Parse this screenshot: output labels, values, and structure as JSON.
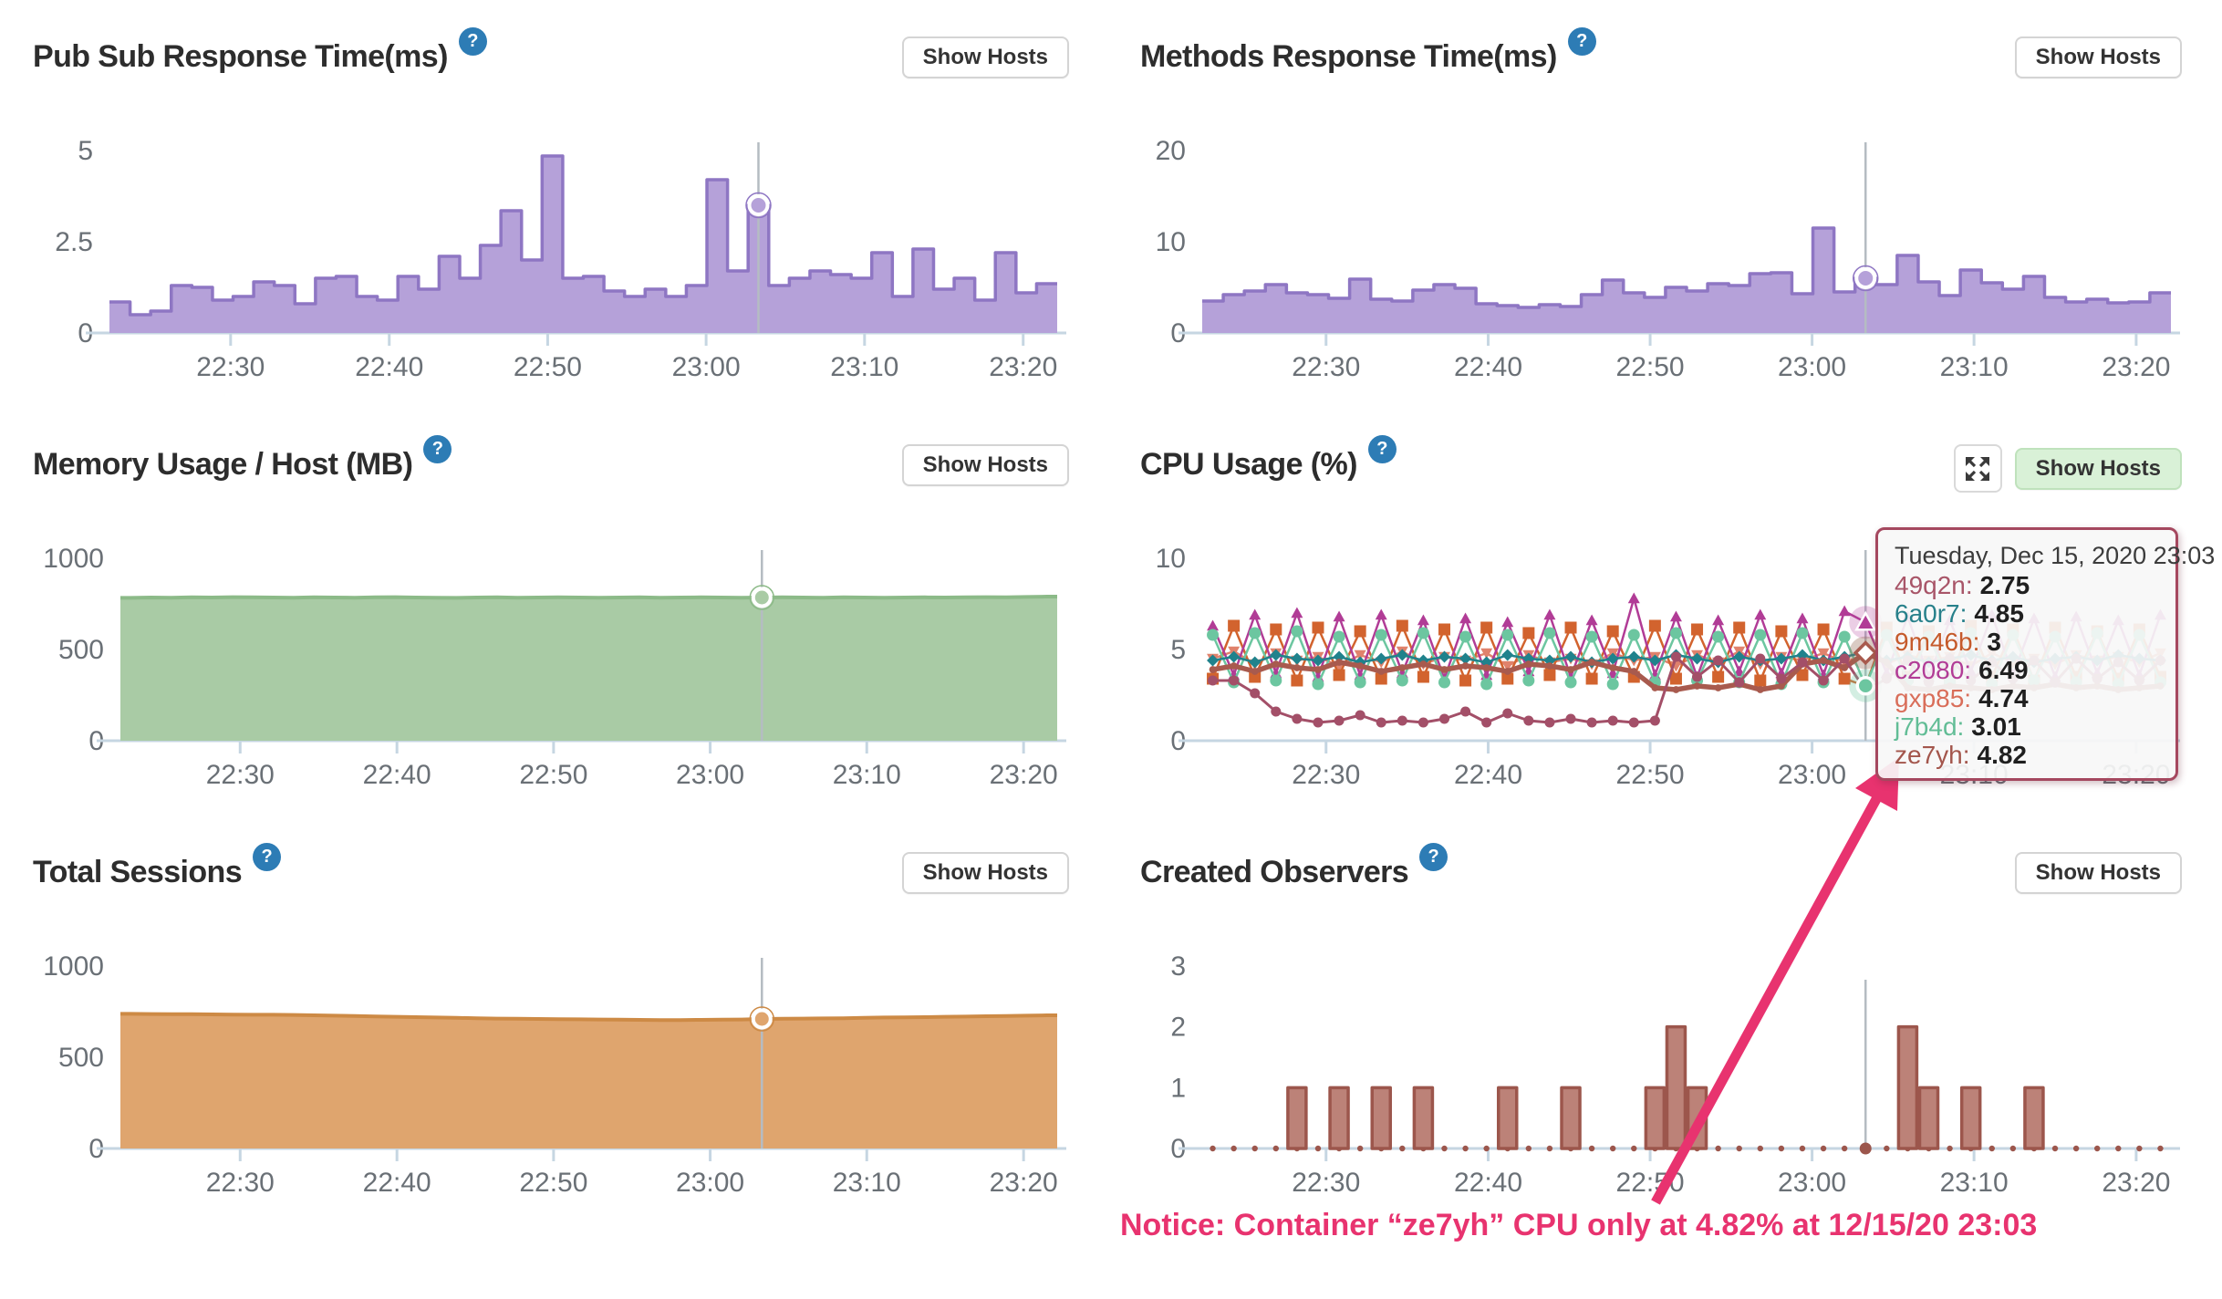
{
  "buttons": {
    "show_hosts": "Show Hosts"
  },
  "colors": {
    "purple_fill": "#b5a1d9",
    "purple_stroke": "#8e76c3",
    "green_fill": "#a9cba5",
    "green_stroke": "#8cba88",
    "orange_fill": "#dfa56e",
    "orange_stroke": "#cd8a45",
    "maroon_fill": "#bc8278",
    "maroon_stroke": "#9c564c",
    "axis": "#c6d6e2",
    "crosshair": "#b5bcc2",
    "help_icon": "#2d7cb5",
    "notice": "#e8336f",
    "tooltip_border": "#a5485f"
  },
  "panels": {
    "pubsub": {
      "title": "Pub Sub Response Time(ms)"
    },
    "methods": {
      "title": "Methods Response Time(ms)"
    },
    "memory": {
      "title": "Memory Usage / Host (MB)"
    },
    "cpu": {
      "title": "CPU Usage (%)"
    },
    "sessions": {
      "title": "Total Sessions"
    },
    "observers": {
      "title": "Created Observers"
    }
  },
  "tooltip": {
    "header": "Tuesday, Dec 15, 2020 23:03",
    "rows": [
      {
        "label": "49q2n",
        "value": "2.75",
        "color": "#a85568"
      },
      {
        "label": "6a0r7",
        "value": "4.85",
        "color": "#27808a"
      },
      {
        "label": "9m46b",
        "value": "3",
        "color": "#c55a2b"
      },
      {
        "label": "c2080",
        "value": "6.49",
        "color": "#b13c96"
      },
      {
        "label": "gxp85",
        "value": "4.74",
        "color": "#d96e5a"
      },
      {
        "label": "j7b4d",
        "value": "3.01",
        "color": "#62bd96"
      },
      {
        "label": "ze7yh",
        "value": "4.82",
        "color": "#a3564c"
      }
    ]
  },
  "notice": {
    "text": "Notice: Container “ze7yh” CPU only at 4.82% at 12/15/20 23:03"
  },
  "chart_data": [
    {
      "id": "pubsub",
      "type": "step-area",
      "title": "Pub Sub Response Time(ms)",
      "ylim": [
        0,
        5
      ],
      "yticks": [
        {
          "label": "5",
          "v": 5
        },
        {
          "label": "2.5",
          "v": 2.5
        },
        {
          "label": "0",
          "v": 0
        }
      ],
      "x_ticks": [
        {
          "label": "22:30",
          "pos": 5.38
        },
        {
          "label": "22:40",
          "pos": 13.08
        },
        {
          "label": "22:50",
          "pos": 20.77
        },
        {
          "label": "23:00",
          "pos": 28.46
        },
        {
          "label": "23:10",
          "pos": 36.15
        },
        {
          "label": "23:20",
          "pos": 43.85
        }
      ],
      "hover_index": 31,
      "fill": "#b5a1d9",
      "stroke": "#8e76c3",
      "values": [
        0.85,
        0.5,
        0.6,
        1.3,
        1.25,
        0.9,
        1.0,
        1.4,
        1.3,
        0.8,
        1.5,
        1.55,
        1.0,
        0.9,
        1.55,
        1.2,
        2.1,
        1.5,
        2.4,
        3.35,
        2.0,
        4.85,
        1.5,
        1.55,
        1.15,
        1.0,
        1.2,
        1.0,
        1.3,
        4.2,
        1.7,
        3.5,
        1.3,
        1.5,
        1.7,
        1.6,
        1.5,
        2.2,
        1.0,
        2.3,
        1.2,
        1.5,
        0.9,
        2.2,
        1.1,
        1.35
      ]
    },
    {
      "id": "methods",
      "type": "step-area",
      "title": "Methods Response Time(ms)",
      "ylim": [
        0,
        20
      ],
      "yticks": [
        {
          "label": "20",
          "v": 20
        },
        {
          "label": "10",
          "v": 10
        },
        {
          "label": "0",
          "v": 0
        }
      ],
      "x_ticks": [
        {
          "label": "22:30",
          "pos": 5.38
        },
        {
          "label": "22:40",
          "pos": 13.08
        },
        {
          "label": "22:50",
          "pos": 20.77
        },
        {
          "label": "23:00",
          "pos": 28.46
        },
        {
          "label": "23:10",
          "pos": 36.15
        },
        {
          "label": "23:20",
          "pos": 43.85
        }
      ],
      "hover_index": 31,
      "fill": "#b5a1d9",
      "stroke": "#8e76c3",
      "values": [
        3.5,
        4.2,
        4.6,
        5.3,
        4.4,
        4.2,
        3.8,
        5.9,
        3.7,
        3.5,
        4.7,
        5.3,
        4.9,
        3.2,
        3.0,
        2.8,
        3.1,
        2.9,
        4.2,
        5.8,
        4.4,
        3.9,
        5.0,
        4.6,
        5.4,
        5.2,
        6.5,
        6.6,
        4.3,
        11.5,
        4.5,
        6.0,
        5.3,
        8.5,
        5.6,
        4.1,
        6.9,
        5.5,
        4.8,
        6.2,
        3.9,
        3.4,
        3.7,
        3.3,
        3.4,
        4.4
      ]
    },
    {
      "id": "memory",
      "type": "area",
      "title": "Memory Usage / Host (MB)",
      "ylim": [
        0,
        1000
      ],
      "yticks": [
        {
          "label": "1000",
          "v": 1000
        },
        {
          "label": "500",
          "v": 500
        },
        {
          "label": "0",
          "v": 0
        }
      ],
      "x_ticks": [
        {
          "label": "22:30",
          "pos": 5.38
        },
        {
          "label": "22:40",
          "pos": 13.08
        },
        {
          "label": "22:50",
          "pos": 20.77
        },
        {
          "label": "23:00",
          "pos": 28.46
        },
        {
          "label": "23:10",
          "pos": 36.15
        },
        {
          "label": "23:20",
          "pos": 43.85
        }
      ],
      "hover_index": 31,
      "fill": "#a9cba5",
      "stroke": "#8cba88",
      "values": [
        783,
        785,
        784,
        786,
        785,
        787,
        786,
        785,
        784,
        786,
        785,
        784,
        786,
        787,
        785,
        784,
        783,
        785,
        786,
        784,
        785,
        786,
        785,
        784,
        785,
        786,
        784,
        785,
        786,
        785,
        784,
        785,
        786,
        785,
        784,
        786,
        785,
        784,
        785,
        786,
        785,
        786,
        787,
        786,
        788,
        790
      ]
    },
    {
      "id": "cpu",
      "type": "line-multi",
      "title": "CPU Usage (%)",
      "ylim": [
        0,
        10
      ],
      "yticks": [
        {
          "label": "10",
          "v": 10
        },
        {
          "label": "5",
          "v": 5
        },
        {
          "label": "0",
          "v": 0
        }
      ],
      "x_ticks": [
        {
          "label": "22:30",
          "pos": 5.38
        },
        {
          "label": "22:40",
          "pos": 13.08
        },
        {
          "label": "22:50",
          "pos": 20.77
        },
        {
          "label": "23:00",
          "pos": 28.46
        },
        {
          "label": "23:10",
          "pos": 36.15
        },
        {
          "label": "23:20",
          "pos": 43.85
        }
      ],
      "hover_index": 31,
      "series": [
        {
          "name": "gxp85",
          "color": "#e0826c",
          "marker": "triangle-down",
          "width": 2.5,
          "values": [
            4.5,
            4.9,
            4.2,
            4.8,
            4.4,
            4.6,
            4.1,
            4.7,
            4.3,
            4.9,
            4.2,
            4.6,
            4.4,
            4.8,
            4.1,
            4.7,
            4.3,
            4.5,
            4.2,
            4.8,
            4.4,
            4.6,
            4.1,
            4.7,
            4.3,
            4.9,
            4.2,
            4.6,
            4.4,
            4.8,
            4.3,
            4.74,
            4.2,
            4.7,
            4.4,
            4.6,
            4.1,
            4.8,
            4.3,
            4.5,
            4.2,
            4.7,
            4.4,
            4.6,
            4.3,
            4.8
          ]
        },
        {
          "name": "9m46b",
          "color": "#d2632e",
          "marker": "square",
          "width": 2.5,
          "values": [
            3.4,
            6.3,
            3.5,
            6.1,
            3.3,
            6.2,
            3.6,
            6.0,
            3.4,
            6.3,
            3.5,
            6.1,
            3.3,
            6.2,
            3.4,
            5.9,
            3.6,
            6.2,
            3.4,
            6.0,
            3.5,
            6.3,
            3.4,
            6.1,
            3.5,
            6.2,
            3.3,
            6.0,
            3.6,
            6.1,
            3.4,
            3.0,
            6.2,
            3.5,
            6.0,
            3.4,
            6.3,
            3.5,
            6.1,
            3.3,
            6.2,
            3.5,
            6.0,
            3.4,
            6.1,
            3.5
          ]
        },
        {
          "name": "c2080",
          "color": "#b13c96",
          "marker": "triangle-up",
          "width": 2.5,
          "values": [
            6.3,
            3.6,
            6.9,
            3.7,
            7.0,
            3.5,
            6.8,
            3.6,
            6.9,
            3.7,
            6.6,
            3.4,
            6.7,
            3.6,
            6.5,
            3.8,
            6.9,
            3.5,
            6.6,
            3.7,
            7.8,
            3.6,
            6.8,
            3.5,
            6.6,
            3.8,
            6.9,
            3.7,
            6.7,
            3.6,
            7.1,
            6.49,
            3.7,
            6.8,
            3.5,
            6.6,
            3.8,
            6.9,
            3.6,
            6.7,
            3.5,
            6.8,
            3.7,
            6.6,
            3.6,
            6.9
          ]
        },
        {
          "name": "j7b4d",
          "color": "#6cc6a0",
          "marker": "circle",
          "width": 2.5,
          "values": [
            5.8,
            3.2,
            5.9,
            3.3,
            6.0,
            3.1,
            5.7,
            3.2,
            5.8,
            3.3,
            5.9,
            3.2,
            5.7,
            3.1,
            5.8,
            3.3,
            5.9,
            3.2,
            5.7,
            3.1,
            5.8,
            3.2,
            5.9,
            3.3,
            5.7,
            3.2,
            5.8,
            3.1,
            5.9,
            3.2,
            5.7,
            3.01,
            5.8,
            3.3,
            5.7,
            3.2,
            5.9,
            3.1,
            5.8,
            3.3,
            5.7,
            3.2,
            5.9,
            3.1,
            5.8,
            3.2
          ]
        },
        {
          "name": "6a0r7",
          "color": "#20828c",
          "marker": "diamond",
          "width": 2.5,
          "values": [
            4.4,
            4.6,
            4.3,
            4.7,
            4.5,
            4.4,
            4.6,
            4.3,
            4.5,
            4.7,
            4.4,
            4.6,
            4.5,
            4.3,
            4.7,
            4.5,
            4.4,
            4.6,
            4.3,
            4.5,
            4.6,
            4.4,
            4.7,
            4.5,
            4.3,
            4.6,
            4.4,
            4.5,
            4.7,
            4.4,
            4.6,
            4.85,
            4.4,
            4.6,
            4.3,
            4.5,
            4.7,
            4.4,
            4.6,
            4.3,
            4.5,
            4.6,
            4.4,
            4.7,
            4.5,
            4.4
          ]
        },
        {
          "name": "ze7yh",
          "color": "#a85a4e",
          "marker": "dot",
          "width": 5.5,
          "values": [
            3.9,
            4.1,
            3.8,
            4.2,
            4.0,
            3.9,
            4.3,
            4.1,
            3.8,
            4.0,
            4.2,
            3.9,
            4.1,
            4.0,
            3.8,
            4.2,
            4.1,
            3.9,
            4.3,
            4.0,
            3.8,
            2.9,
            2.8,
            3.0,
            2.9,
            3.1,
            2.8,
            3.0,
            4.2,
            4.4,
            4.0,
            4.82,
            4.3,
            2.9,
            2.8,
            3.0,
            2.9,
            2.8,
            3.0,
            2.9,
            3.1,
            2.9,
            3.0,
            2.8,
            2.9,
            3.0
          ]
        },
        {
          "name": "49q2n",
          "color": "#a34f68",
          "marker": "circle-small",
          "width": 3,
          "values": [
            3.3,
            3.3,
            2.6,
            1.6,
            1.2,
            1.0,
            1.1,
            1.4,
            1.0,
            1.1,
            1.0,
            1.2,
            1.6,
            1.0,
            1.5,
            1.1,
            1.0,
            1.2,
            1.0,
            1.1,
            1.0,
            1.1,
            4.6,
            3.5,
            4.4,
            3.2,
            4.5,
            3.4,
            4.3,
            3.3,
            4.5,
            2.75,
            3.4,
            4.4,
            3.2,
            4.5,
            3.3,
            4.3,
            3.4,
            4.4,
            3.2,
            4.5,
            3.4,
            4.3,
            3.3,
            4.4
          ]
        }
      ],
      "highlights": [
        {
          "series": "c2080",
          "halo": "rgba(177,60,150,0.25)",
          "style": "filled"
        },
        {
          "series": "ze7yh",
          "halo": "rgba(150,105,85,0.35)",
          "style": "open-diamond"
        },
        {
          "series": "j7b4d",
          "halo": "rgba(108,198,160,0.30)",
          "style": "filled-circle"
        }
      ]
    },
    {
      "id": "sessions",
      "type": "area",
      "title": "Total Sessions",
      "ylim": [
        0,
        1000
      ],
      "yticks": [
        {
          "label": "1000",
          "v": 1000
        },
        {
          "label": "500",
          "v": 500
        },
        {
          "label": "0",
          "v": 0
        }
      ],
      "x_ticks": [
        {
          "label": "22:30",
          "pos": 5.38
        },
        {
          "label": "22:40",
          "pos": 13.08
        },
        {
          "label": "22:50",
          "pos": 20.77
        },
        {
          "label": "23:00",
          "pos": 28.46
        },
        {
          "label": "23:10",
          "pos": 36.15
        },
        {
          "label": "23:20",
          "pos": 43.85
        }
      ],
      "hover_index": 31,
      "fill": "#dfa56e",
      "stroke": "#cd8a45",
      "values": [
        738,
        737,
        736,
        736,
        735,
        734,
        733,
        733,
        732,
        730,
        728,
        726,
        724,
        722,
        720,
        718,
        716,
        714,
        712,
        711,
        710,
        709,
        708,
        707,
        706,
        705,
        704,
        704,
        705,
        706,
        707,
        710,
        711,
        712,
        713,
        714,
        716,
        718,
        719,
        720,
        722,
        723,
        725,
        726,
        728,
        730
      ]
    },
    {
      "id": "observers",
      "type": "bar",
      "title": "Created Observers",
      "ylim": [
        0,
        3
      ],
      "yticks": [
        {
          "label": "3",
          "v": 3
        },
        {
          "label": "2",
          "v": 2
        },
        {
          "label": "1",
          "v": 1
        },
        {
          "label": "0",
          "v": 0
        }
      ],
      "x_ticks": [
        {
          "label": "22:30",
          "pos": 5.38
        },
        {
          "label": "22:40",
          "pos": 13.08
        },
        {
          "label": "22:50",
          "pos": 20.77
        },
        {
          "label": "23:00",
          "pos": 28.46
        },
        {
          "label": "23:10",
          "pos": 36.15
        },
        {
          "label": "23:20",
          "pos": 43.85
        }
      ],
      "hover_index": 31,
      "fill": "#bc8278",
      "stroke": "#9c564c",
      "values": [
        0,
        0,
        0,
        0,
        1,
        0,
        1,
        0,
        1,
        0,
        1,
        0,
        0,
        0,
        1,
        0,
        0,
        1,
        0,
        0,
        0,
        1,
        2,
        1,
        0,
        0,
        0,
        0,
        0,
        0,
        0,
        0,
        0,
        2,
        1,
        0,
        1,
        0,
        0,
        1,
        0,
        0,
        0,
        0,
        0,
        0
      ]
    }
  ]
}
